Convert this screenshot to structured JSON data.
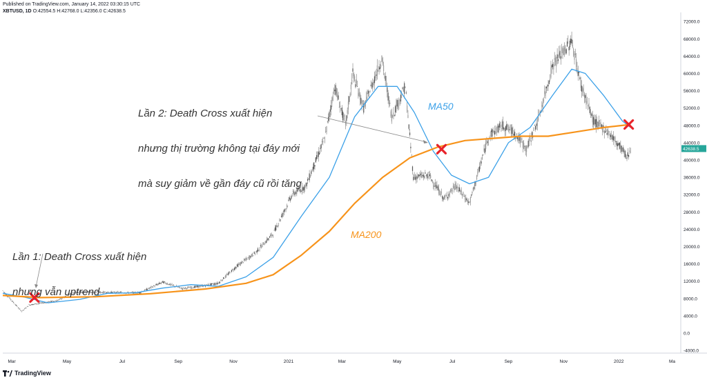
{
  "header": {
    "published": "Published on TradingView.com, January 14, 2022 03:30:15 UTC",
    "symbol": "XBTUSD, 1D",
    "ohlc": "O:42554.5 H:42768.0 L:42356.0 C:42638.5"
  },
  "footer": {
    "brand": "TradingView"
  },
  "colors": {
    "ma50": "#3aa0e8",
    "ma200": "#f7931a",
    "cross": "#e8232a",
    "candle": "#7a7a7a",
    "last_price_bg": "#26a69a"
  },
  "annotations": {
    "first": {
      "line1": "Lần 1: Death Cross xuất hiện",
      "line2": "nhưng vẫn uptrend"
    },
    "second": {
      "line1": "Lần 2: Death Cross xuất hiện",
      "line2": "nhưng thị trường không tại đáy mới",
      "line3": "mà suy giảm về gần đáy cũ rồi tăng"
    }
  },
  "chart_data": {
    "type": "line",
    "x_tick_labels": [
      "Mar",
      "May",
      "Jul",
      "Sep",
      "Nov",
      "2021",
      "Mar",
      "May",
      "Jul",
      "Sep",
      "Nov",
      "2022",
      "Ma"
    ],
    "y_tick_labels": [
      "72000.0",
      "68000.0",
      "64000.0",
      "60000.0",
      "56000.0",
      "52000.0",
      "48000.0",
      "44000.0",
      "40000.0",
      "36000.0",
      "32000.0",
      "28000.0",
      "24000.0",
      "20000.0",
      "16000.0",
      "12000.0",
      "8000.0",
      "4000.0",
      "0.0",
      "-4000.0"
    ],
    "ylim": [
      -5500,
      74000
    ],
    "last_price": "42638.5",
    "series": [
      {
        "name": "MA50",
        "x": [
          "2020-02-20",
          "2020-03-15",
          "2020-04-10",
          "2020-05-15",
          "2020-06-15",
          "2020-07-15",
          "2020-08-15",
          "2020-09-15",
          "2020-10-15",
          "2020-11-15",
          "2020-12-15",
          "2021-01-15",
          "2021-02-15",
          "2021-03-15",
          "2021-04-10",
          "2021-05-01",
          "2021-05-20",
          "2021-06-10",
          "2021-06-30",
          "2021-07-20",
          "2021-08-10",
          "2021-09-01",
          "2021-09-25",
          "2021-10-20",
          "2021-11-10",
          "2021-11-25",
          "2021-12-15",
          "2022-01-05",
          "2022-01-14"
        ],
        "y": [
          9200,
          8300,
          7000,
          7800,
          9200,
          9300,
          10400,
          11200,
          10800,
          13000,
          17500,
          27000,
          36000,
          50000,
          57000,
          57000,
          51000,
          42000,
          36500,
          34500,
          36000,
          44000,
          47500,
          55000,
          61000,
          60000,
          55000,
          49000,
          47500
        ]
      },
      {
        "name": "MA200",
        "x": [
          "2020-02-20",
          "2020-04-01",
          "2020-06-01",
          "2020-08-01",
          "2020-10-01",
          "2020-11-15",
          "2020-12-15",
          "2021-01-15",
          "2021-02-15",
          "2021-03-15",
          "2021-04-15",
          "2021-05-15",
          "2021-06-15",
          "2021-07-15",
          "2021-08-15",
          "2021-09-15",
          "2021-10-15",
          "2021-11-15",
          "2021-12-15",
          "2022-01-14"
        ],
        "y": [
          8700,
          8200,
          8400,
          9100,
          10200,
          11500,
          13500,
          18000,
          23500,
          30000,
          36000,
          40500,
          43000,
          44500,
          45000,
          45500,
          45500,
          46500,
          47500,
          48200
        ]
      }
    ],
    "crosses": [
      {
        "x": "2020-03-26",
        "y": 8200
      },
      {
        "x": "2021-06-19",
        "y": 42500
      },
      {
        "x": "2022-01-12",
        "y": 48200
      }
    ],
    "price": {
      "x": [
        "2020-02-20",
        "2020-03-12",
        "2020-03-20",
        "2020-04-20",
        "2020-05-10",
        "2020-06-15",
        "2020-07-20",
        "2020-08-15",
        "2020-09-05",
        "2020-09-25",
        "2020-10-15",
        "2020-11-05",
        "2020-11-25",
        "2020-12-15",
        "2021-01-05",
        "2021-01-20",
        "2021-02-10",
        "2021-02-21",
        "2021-03-05",
        "2021-03-13",
        "2021-03-25",
        "2021-04-14",
        "2021-04-25",
        "2021-05-10",
        "2021-05-19",
        "2021-06-05",
        "2021-06-22",
        "2021-07-05",
        "2021-07-20",
        "2021-08-10",
        "2021-08-25",
        "2021-09-07",
        "2021-09-21",
        "2021-10-05",
        "2021-10-20",
        "2021-11-10",
        "2021-11-20",
        "2021-12-04",
        "2021-12-20",
        "2022-01-05",
        "2022-01-10",
        "2022-01-14"
      ],
      "y": [
        9800,
        5000,
        6500,
        7500,
        9500,
        9400,
        9300,
        11800,
        10300,
        10800,
        11500,
        15500,
        18500,
        23000,
        32000,
        34000,
        45000,
        57000,
        48000,
        60000,
        52000,
        63500,
        50000,
        57000,
        36000,
        36500,
        31000,
        34000,
        30000,
        45500,
        48000,
        46500,
        42500,
        50000,
        62000,
        67500,
        57500,
        49000,
        46500,
        42500,
        40500,
        42600
      ]
    }
  }
}
